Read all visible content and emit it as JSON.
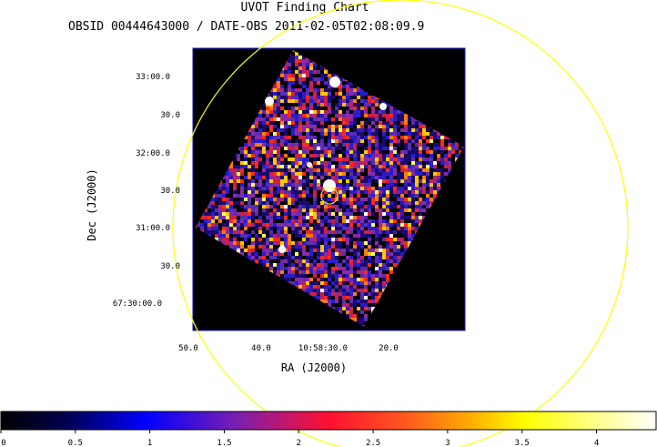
{
  "chart_data": {
    "type": "heatmap",
    "title": "UVOT Finding Chart",
    "subtitle": "OBSID 00444643000 / DATE-OBS 2011-02-05T02:08:09.9",
    "xlabel": "RA (J2000)",
    "ylabel": "Dec (J2000)",
    "x_ticks": [
      "50.0",
      "40.0",
      "10:58:30.0",
      "20.0"
    ],
    "y_ticks": [
      "33:00.0",
      "30.0",
      "32:00.0",
      "30.0",
      "31:00.0",
      "30.0",
      "67:30:00.0"
    ],
    "colorbar": {
      "ticks": [
        "0",
        "0.5",
        "1",
        "1.5",
        "2",
        "2.5",
        "3",
        "3.5",
        "4"
      ],
      "range": [
        0,
        4.4
      ],
      "colors": [
        "#000000",
        "#0000ff",
        "#ff0000",
        "#ffff00",
        "#ffffff"
      ]
    },
    "grid": false,
    "overlays": [
      "large-yellow-circle",
      "small-yellow-source-circle"
    ]
  }
}
